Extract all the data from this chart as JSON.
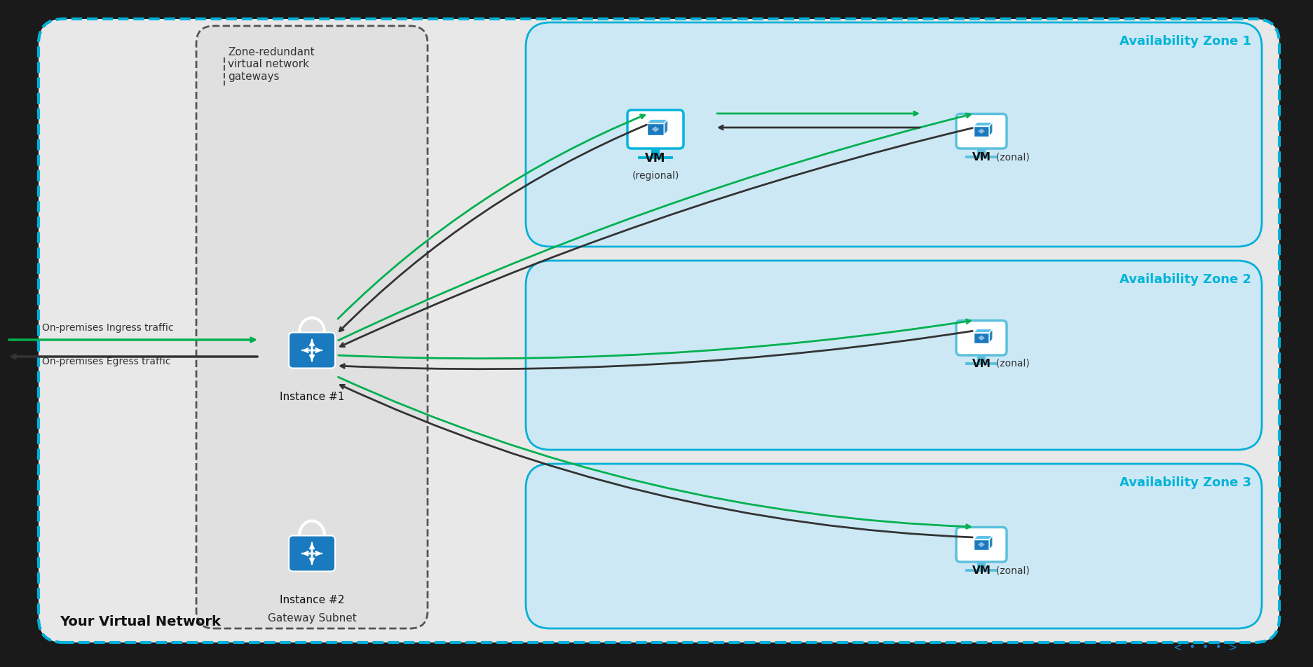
{
  "bg_color": "#f0f0f0",
  "vnet_border_color": "#00b0d8",
  "vnet_bg": "#e8e8e8",
  "zone_bg": "#d0eef8",
  "zone_border_color": "#00b0d8",
  "gateway_subnet_border_color": "#555555",
  "gateway_subnet_bg": "#e0e0e0",
  "lock_color": "#1a7abf",
  "vm_monitor_color": "#00b4d8",
  "vm_cube_color": "#1a7abf",
  "arrow_green": "#00b050",
  "arrow_black": "#333333",
  "text_color_dark": "#111111",
  "text_color_zone": "#00b4d8",
  "title_vnet": "Your Virtual Network",
  "title_gateway_subnet": "Gateway Subnet",
  "zone1_label": "Availability Zone 1",
  "zone2_label": "Availability Zone 2",
  "zone3_label": "Availability Zone 3",
  "label_zone_redundant": "Zone-redundant\nvirtual network\ngateways",
  "label_vm_regional": "VM\n(regional)",
  "label_vm_zonal": "VM  (zonal)",
  "label_instance1": "Instance #1",
  "label_instance2": "Instance #2",
  "label_ingress": "On-premises Ingress traffic",
  "label_egress": "On-premises Egress traffic"
}
